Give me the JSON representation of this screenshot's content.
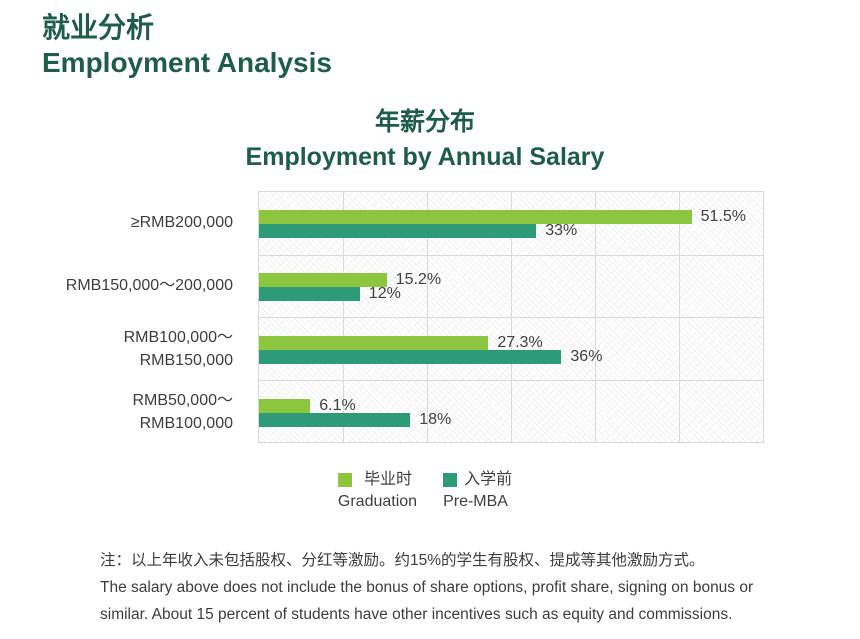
{
  "header": {
    "title_zh": "就业分析",
    "title_en": "Employment Analysis"
  },
  "chart_data": {
    "type": "bar",
    "orientation": "horizontal",
    "title_zh": "年薪分布",
    "title_en": "Employment by Annual Salary",
    "categories": [
      [
        "≥RMB200,000"
      ],
      [
        "RMB150,000～200,000"
      ],
      [
        "RMB100,000～",
        "RMB150,000"
      ],
      [
        "RMB50,000～",
        "RMB100,000"
      ]
    ],
    "series": [
      {
        "key": "graduation",
        "name_zh": "毕业时",
        "name_en": "Graduation",
        "color": "#8cc63f",
        "values": [
          51.5,
          15.2,
          27.3,
          6.1
        ],
        "labels": [
          "51.5%",
          "15.2%",
          "27.3%",
          "6.1%"
        ]
      },
      {
        "key": "pre-mba",
        "name_zh": "入学前",
        "name_en": "Pre-MBA",
        "color": "#2e9b78",
        "values": [
          33,
          12,
          36,
          18
        ],
        "labels": [
          "33%",
          "12%",
          "36%",
          "18%"
        ]
      }
    ],
    "xlim": [
      0,
      60
    ],
    "grid": {
      "x_interval": 10,
      "color": "#d9d9d9",
      "plot_background": "diagonal-hatch"
    },
    "legend_position": "bottom-center"
  },
  "notes": {
    "zh": "注：以上年收入未包括股权、分红等激励。约15%的学生有股权、提成等其他激励方式。",
    "en_line1": "The salary above does not include the bonus of share options, profit share, signing on bonus or",
    "en_line2": "similar. About 15 percent of students have other incentives such as equity and commissions."
  },
  "colors": {
    "heading": "#1e5c4b",
    "bar_graduation": "#8cc63f",
    "bar_premba": "#2e9b78",
    "text": "#3d3d3d",
    "grid": "#d9d9d9"
  }
}
